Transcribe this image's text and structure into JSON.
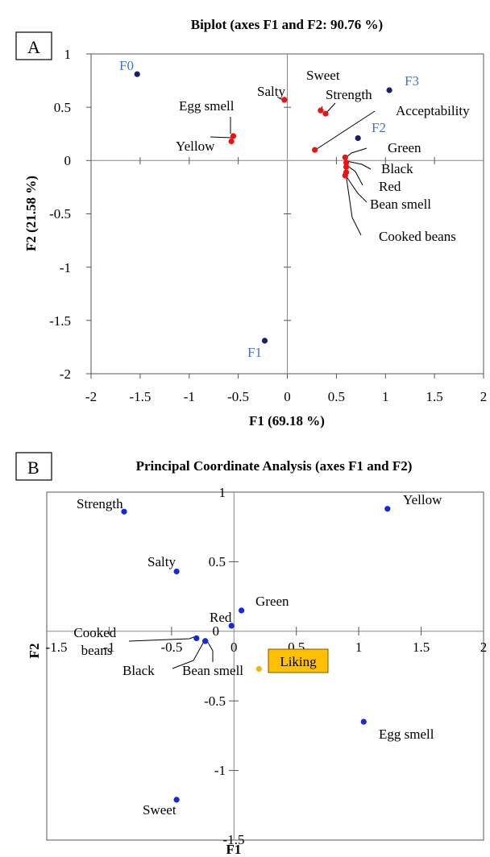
{
  "chart_data": [
    {
      "type": "scatter",
      "panel_label": "A",
      "title": "Biplot (axes F1 and F2: 90.76 %)",
      "xlabel": "F1 (69.18 %)",
      "ylabel": "F2 (21.58 %)",
      "xlim": [
        -2,
        2
      ],
      "ylim": [
        -2,
        1
      ],
      "xticks": [
        "-2",
        "-1.5",
        "-1",
        "-0.5",
        "0",
        "0.5",
        "1",
        "1.5",
        "2"
      ],
      "yticks": [
        "-2",
        "-1.5",
        "-1",
        "-0.5",
        "0",
        "0.5",
        "1"
      ],
      "colors": {
        "variables": "#ee1111",
        "observations": "#1a1f6b",
        "observation_labels": "#4472c4"
      },
      "series": [
        {
          "points": [
            {
              "label": "Salty",
              "x": -0.03,
              "y": 0.57
            },
            {
              "label": "Egg smell",
              "x": -0.55,
              "y": 0.23
            },
            {
              "label": "Yellow",
              "x": -0.57,
              "y": 0.18
            },
            {
              "label": "Sweet",
              "x": 0.34,
              "y": 0.47
            },
            {
              "label": "Strength",
              "x": 0.39,
              "y": 0.44
            },
            {
              "label": "Acceptability",
              "x": 0.28,
              "y": 0.1
            },
            {
              "label": "Green",
              "x": 0.59,
              "y": 0.03
            },
            {
              "label": "Black",
              "x": 0.6,
              "y": -0.02
            },
            {
              "label": "Red",
              "x": 0.6,
              "y": -0.06
            },
            {
              "label": "Bean smell",
              "x": 0.59,
              "y": -0.14
            },
            {
              "label": "Cooked beans",
              "x": 0.6,
              "y": -0.11
            }
          ]
        },
        {
          "points": [
            {
              "label": "F0",
              "x": -1.53,
              "y": 0.81
            },
            {
              "label": "F3",
              "x": 1.04,
              "y": 0.66
            },
            {
              "label": "F2",
              "x": 0.72,
              "y": 0.21
            },
            {
              "label": "F1",
              "x": -0.23,
              "y": -1.69
            }
          ]
        }
      ]
    },
    {
      "type": "scatter",
      "panel_label": "B",
      "title": "Principal Coordinate Analysis (axes F1 and F2)",
      "xlabel": "F1",
      "ylabel": "F2",
      "xlim": [
        -1.5,
        2
      ],
      "ylim": [
        -1.5,
        1
      ],
      "xticks": [
        "-1.5",
        "-1",
        "-0.5",
        "0",
        "0.5",
        "1",
        "1.5",
        "2"
      ],
      "yticks": [
        "-1.5",
        "-1",
        "-0.5",
        "0",
        "0.5",
        "1"
      ],
      "colors": {
        "points": "#1428e0",
        "liking_point": "#f2b807",
        "liking_box": "#ffc000"
      },
      "series": [
        {
          "points": [
            {
              "label": "Strength",
              "x": -0.88,
              "y": 0.86
            },
            {
              "label": "Yellow",
              "x": 1.23,
              "y": 0.88
            },
            {
              "label": "Salty",
              "x": -0.46,
              "y": 0.43
            },
            {
              "label": "Green",
              "x": 0.06,
              "y": 0.15
            },
            {
              "label": "Red",
              "x": -0.02,
              "y": 0.04
            },
            {
              "label": "Cooked beans",
              "x": -0.3,
              "y": -0.05
            },
            {
              "label": "Black",
              "x": -0.23,
              "y": -0.07
            },
            {
              "label": "Bean smell",
              "x": -0.23,
              "y": -0.07
            },
            {
              "label": "Egg smell",
              "x": 1.04,
              "y": -0.65
            },
            {
              "label": "Sweet",
              "x": -0.46,
              "y": -1.21
            }
          ]
        },
        {
          "points": [
            {
              "label": "Liking",
              "x": 0.2,
              "y": -0.27
            }
          ]
        }
      ]
    }
  ]
}
